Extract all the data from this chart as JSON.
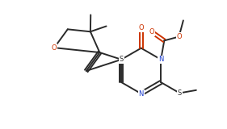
{
  "bg_color": "#ffffff",
  "bond_color": "#2a2a2a",
  "o_color": "#cc3300",
  "n_color": "#1a3acc",
  "s_color": "#2a2a2a",
  "lw": 1.4,
  "xlim": [
    0,
    2.81
  ],
  "ylim": [
    0,
    1.6
  ]
}
